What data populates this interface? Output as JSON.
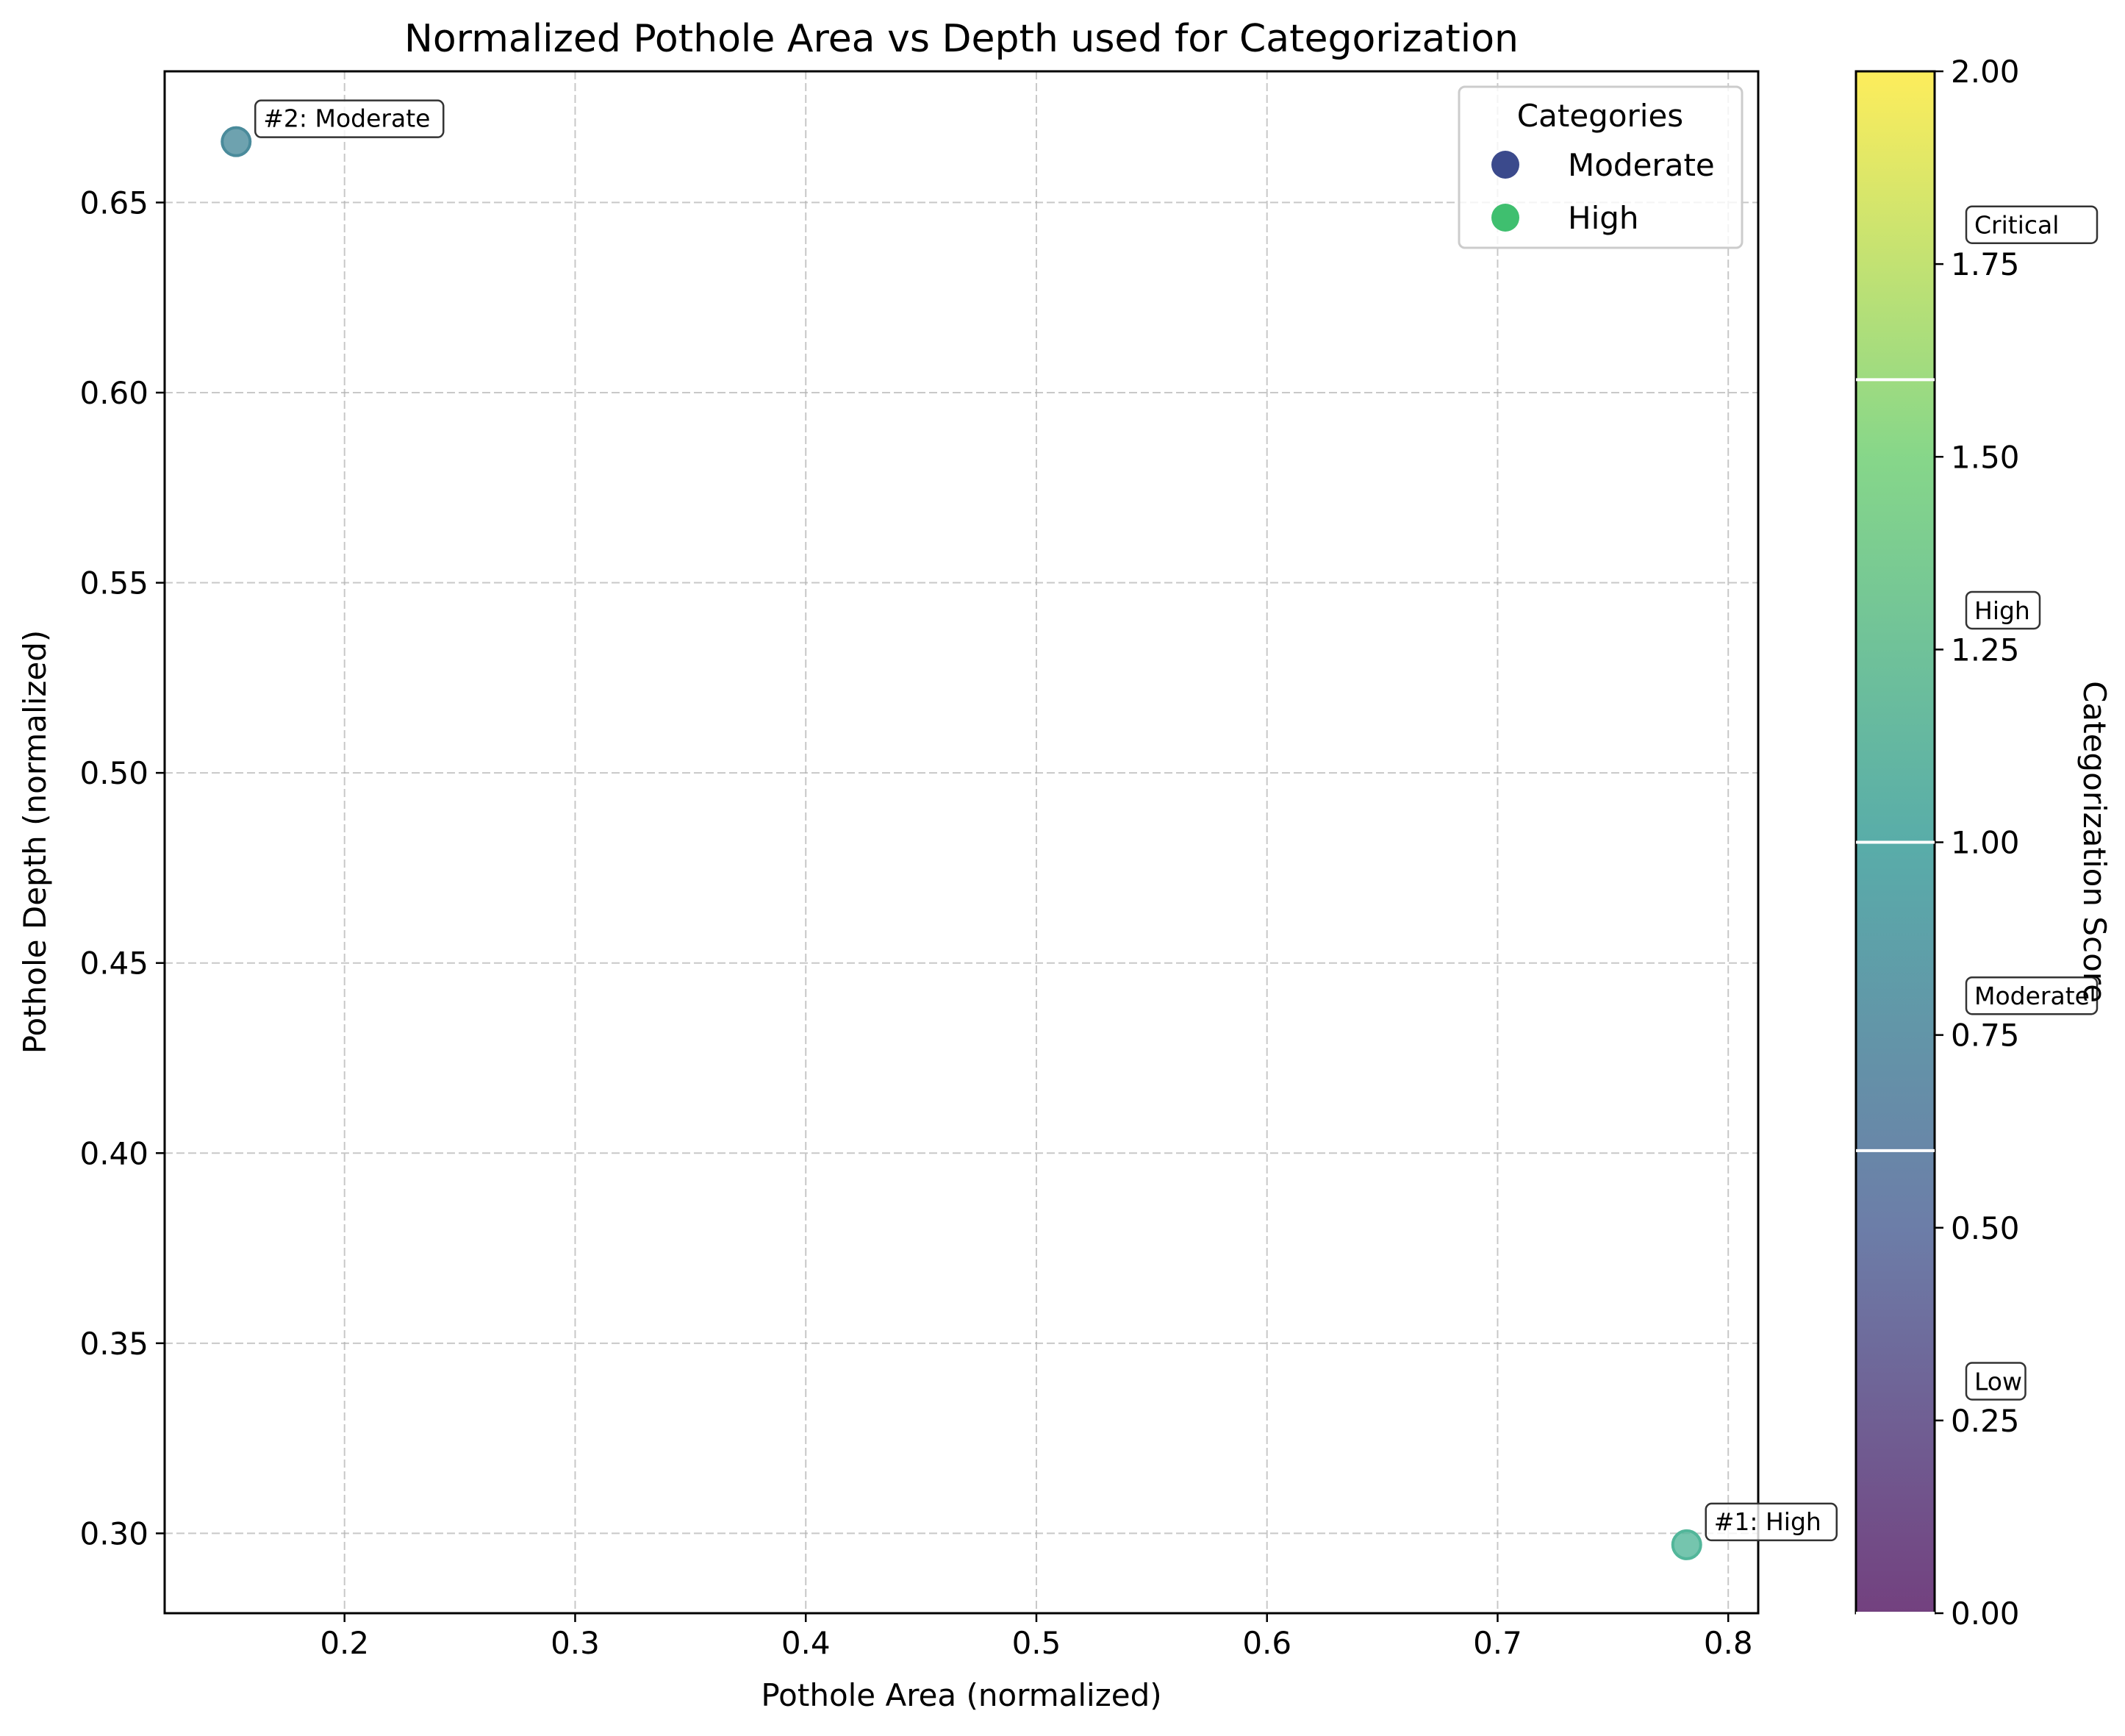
{
  "chart_data": {
    "type": "scatter",
    "title": "Normalized Pothole Area vs Depth used for Categorization",
    "xlabel": "Pothole Area (normalized)",
    "ylabel": "Pothole Depth (normalized)",
    "xlim": [
      0.122,
      0.813
    ],
    "ylim": [
      0.279,
      0.6845
    ],
    "xticks": [
      "0.2",
      "0.3",
      "0.4",
      "0.5",
      "0.6",
      "0.7",
      "0.8"
    ],
    "yticks": [
      "0.30",
      "0.35",
      "0.40",
      "0.45",
      "0.50",
      "0.55",
      "0.60",
      "0.65"
    ],
    "grid": true,
    "points": [
      {
        "x": 0.782,
        "y": 0.297,
        "score": 1.1,
        "label": "#1: High",
        "color": "#52b69a"
      },
      {
        "x": 0.153,
        "y": 0.666,
        "score": 0.8,
        "label": "#2: Moderate",
        "color": "#4a8b9b"
      }
    ],
    "legend": {
      "title": "Categories",
      "placement": "top-right",
      "entries": [
        {
          "label": "Moderate",
          "color": "#3b4a8c"
        },
        {
          "label": "High",
          "color": "#3fbf6f"
        }
      ]
    },
    "colorbar": {
      "label": "Categorization Score",
      "range": [
        0,
        2
      ],
      "ticks": [
        "0.00",
        "0.25",
        "0.50",
        "0.75",
        "1.00",
        "1.25",
        "1.50",
        "1.75",
        "2.00"
      ],
      "boundaries": [
        0,
        0.6,
        1.0,
        1.6
      ],
      "category_labels": [
        {
          "label": "Low",
          "value": 0.3
        },
        {
          "label": "Moderate",
          "value": 0.8
        },
        {
          "label": "High",
          "value": 1.3
        },
        {
          "label": "Critical",
          "value": 1.8
        }
      ],
      "colors": [
        "#440154",
        "#3b528b",
        "#21918c",
        "#5ec962",
        "#fde725"
      ]
    }
  }
}
